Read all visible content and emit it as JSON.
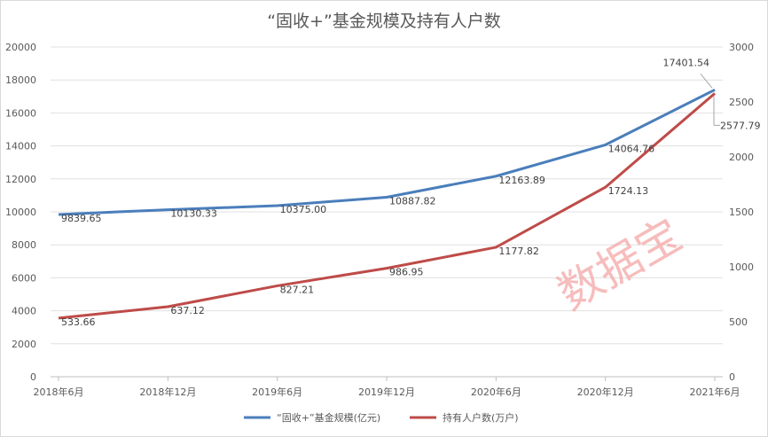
{
  "chart_data": {
    "type": "line",
    "title": "“固收+”基金规模及持有人户数",
    "categories": [
      "2018年6月",
      "2018年12月",
      "2019年6月",
      "2019年12月",
      "2020年6月",
      "2020年12月",
      "2021年6月"
    ],
    "series": [
      {
        "name": "“固收+”基金规模(亿元)",
        "axis": "left",
        "color": "#4a7ebb",
        "values": [
          9839.65,
          10130.33,
          10375.0,
          10887.82,
          12163.89,
          14064.76,
          17401.54
        ],
        "labels": [
          "9839.65",
          "10130.33",
          "10375.00",
          "10887.82",
          "12163.89",
          "14064.76",
          "17401.54"
        ]
      },
      {
        "name": "持有人户数(万户)",
        "axis": "right",
        "color": "#be4b48",
        "values": [
          533.66,
          637.12,
          827.21,
          986.95,
          1177.82,
          1724.13,
          2577.79
        ],
        "labels": [
          "533.66",
          "637.12",
          "827.21",
          "986.95",
          "1177.82",
          "1724.13",
          "2577.79"
        ]
      }
    ],
    "left_axis": {
      "ylim": [
        0,
        20000
      ],
      "ticks": [
        "0",
        "2000",
        "4000",
        "6000",
        "8000",
        "10000",
        "12000",
        "14000",
        "16000",
        "18000",
        "20000"
      ]
    },
    "right_axis": {
      "ylim": [
        0,
        3000
      ],
      "ticks": [
        "0",
        "500",
        "1000",
        "1500",
        "2000",
        "2500",
        "3000"
      ]
    },
    "grid": true,
    "legend": "bottom"
  },
  "watermark": "数据宝"
}
